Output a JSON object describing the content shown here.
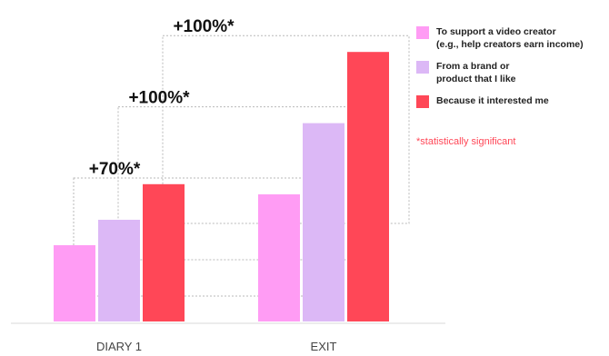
{
  "chart_data": {
    "type": "bar",
    "categories": [
      "DIARY 1",
      "EXIT"
    ],
    "series": [
      {
        "name": "To support a video creator\n(e.g., help creators earn income)",
        "color": "#ff9cf4",
        "values": [
          15,
          25
        ]
      },
      {
        "name": "From a brand or\nproduct that I like",
        "color": "#dcb8f6",
        "values": [
          20,
          39
        ]
      },
      {
        "name": "Because it interested me",
        "color": "#ff4757",
        "values": [
          27,
          53
        ]
      }
    ],
    "ylim": [
      0,
      60
    ],
    "annotations": [
      {
        "label": "+70%*",
        "from_series": 0,
        "to_series": 0
      },
      {
        "label": "+100%*",
        "from_series": 1,
        "to_series": 1
      },
      {
        "label": "+100%*",
        "from_series": 2,
        "to_series": 2
      }
    ],
    "footnote": "*statistically significant",
    "legend_position": "right",
    "grid": false
  }
}
